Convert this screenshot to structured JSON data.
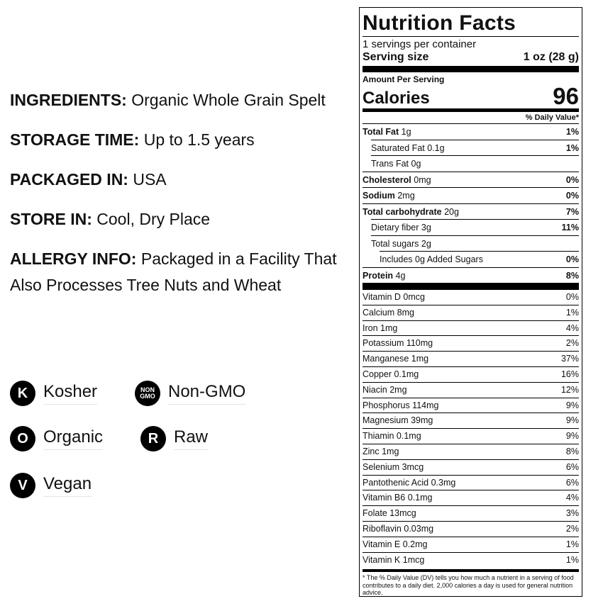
{
  "info": [
    {
      "label": "INGREDIENTS:",
      "text": "Organic Whole Grain Spelt"
    },
    {
      "label": "STORAGE TIME:",
      "text": "Up to 1.5 years"
    },
    {
      "label": "PACKAGED IN:",
      "text": "USA"
    },
    {
      "label": "STORE IN:",
      "text": "Cool, Dry Place"
    },
    {
      "label": "ALLERGY INFO:",
      "text": "Packaged in a Facility That Also Processes Tree Nuts and Wheat"
    }
  ],
  "badges": [
    {
      "icon": [
        "K"
      ],
      "label": "Kosher"
    },
    {
      "icon": [
        "NON",
        "GMO"
      ],
      "label": "Non-GMO"
    },
    {
      "icon": [
        "O"
      ],
      "label": "Organic"
    },
    {
      "icon": [
        "R"
      ],
      "label": "Raw"
    },
    {
      "icon": [
        "V"
      ],
      "label": "Vegan"
    }
  ],
  "nutrition": {
    "title": "Nutrition Facts",
    "servings": "1 servings per container",
    "serving_size_label": "Serving size",
    "serving_size": "1 oz (28 g)",
    "amount_per_serving": "Amount Per Serving",
    "calories_label": "Calories",
    "calories": "96",
    "dv_header": "% Daily Value*",
    "rows": [
      {
        "name": "Total Fat",
        "amount": "1g",
        "dv": "1%",
        "bold": true,
        "indent": 0
      },
      {
        "name": "Saturated Fat",
        "amount": "0.1g",
        "dv": "1%",
        "bold": false,
        "indent": 1
      },
      {
        "name": "Trans Fat",
        "amount": "0g",
        "bold": false,
        "indent": 1
      },
      {
        "name": "Cholesterol",
        "amount": "0mg",
        "dv": "0%",
        "bold": true,
        "indent": 0
      },
      {
        "name": "Sodium",
        "amount": "2mg",
        "dv": "0%",
        "bold": true,
        "indent": 0
      },
      {
        "name": "Total carbohydrate",
        "amount": "20g",
        "dv": "7%",
        "bold": true,
        "indent": 0
      },
      {
        "name": "Dietary fiber",
        "amount": "3g",
        "dv": "11%",
        "bold": false,
        "indent": 1
      },
      {
        "name": "Total sugars",
        "amount": "2g",
        "bold": false,
        "indent": 1
      },
      {
        "name": "Includes 0g Added Sugars",
        "dv": "0%",
        "bold": false,
        "indent": 2
      },
      {
        "name": "Protein",
        "amount": "4g",
        "dv": "8%",
        "bold": true,
        "indent": 0
      }
    ],
    "vitamins": [
      {
        "name": "Vitamin D 0mcg",
        "dv": "0%"
      },
      {
        "name": "Calcium 8mg",
        "dv": "1%"
      },
      {
        "name": "Iron 1mg",
        "dv": "4%"
      },
      {
        "name": "Potassium 110mg",
        "dv": "2%"
      },
      {
        "name": "Manganese 1mg",
        "dv": "37%"
      },
      {
        "name": "Copper 0.1mg",
        "dv": "16%"
      },
      {
        "name": "Niacin 2mg",
        "dv": "12%"
      },
      {
        "name": "Phosphorus 114mg",
        "dv": "9%"
      },
      {
        "name": "Magnesium 39mg",
        "dv": "9%"
      },
      {
        "name": "Thiamin 0.1mg",
        "dv": "9%"
      },
      {
        "name": "Zinc 1mg",
        "dv": "8%"
      },
      {
        "name": "Selenium 3mcg",
        "dv": "6%"
      },
      {
        "name": "Pantothenic Acid 0.3mg",
        "dv": "6%"
      },
      {
        "name": "Vitamin B6 0.1mg",
        "dv": "4%"
      },
      {
        "name": "Folate 13mcg",
        "dv": "3%"
      },
      {
        "name": "Riboflavin 0.03mg",
        "dv": "2%"
      },
      {
        "name": "Vitamin E 0.2mg",
        "dv": "1%"
      },
      {
        "name": "Vitamin K 1mcg",
        "dv": "1%"
      }
    ],
    "footnote": "* The % Daily Value (DV) tells you how much a nutrient in a serving of food contributes to a daily diet. 2,000 calories a day is used for general nutrition advice."
  }
}
